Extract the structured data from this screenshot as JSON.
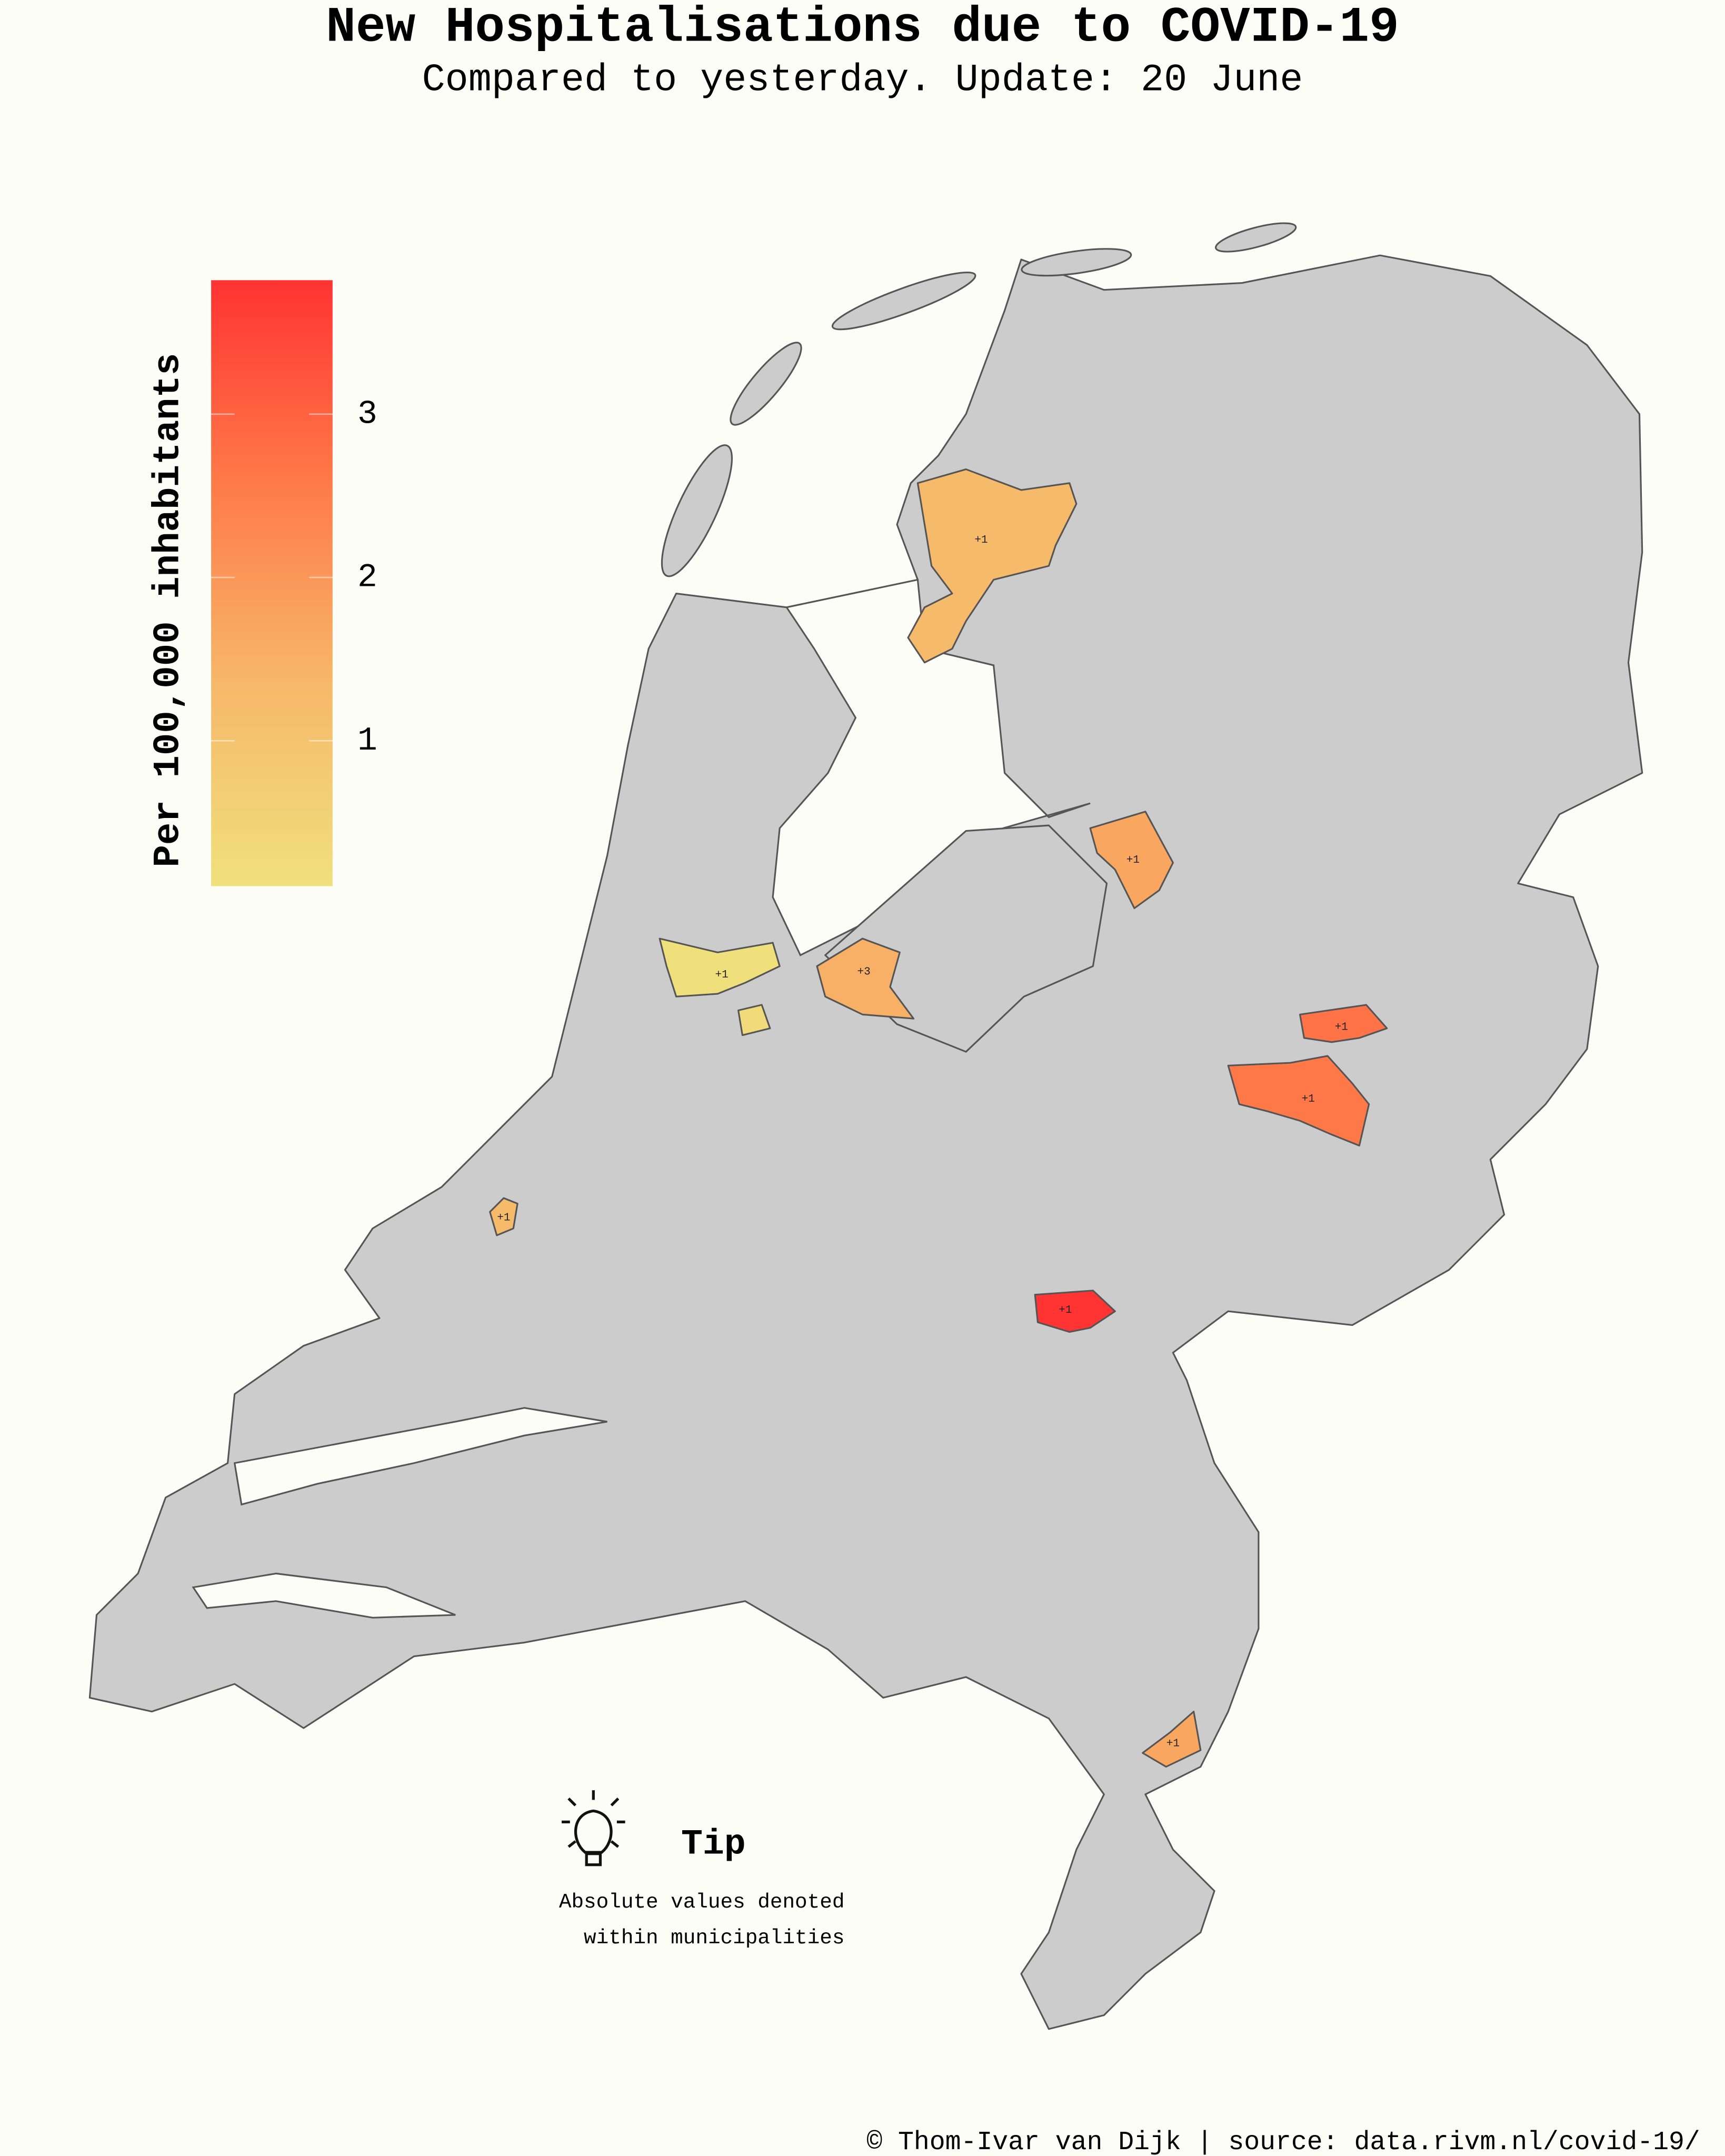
{
  "title": "New Hospitalisations due to COVID-19",
  "subtitle": "Compared to yesterday. Update: 20 June",
  "chart_data": {
    "type": "choropleth",
    "colorbar_label": "Per 100,000 inhabitants",
    "crange": [
      0.11,
      3.82
    ],
    "cticks": [
      1,
      2,
      3
    ],
    "colorscale": [
      "#f0e07c",
      "#f6b86a",
      "#ff7a48",
      "#ff3333"
    ],
    "regions": [
      {
        "label": "+1",
        "value": 1.3
      },
      {
        "label": "+1",
        "value": 1.7
      },
      {
        "label": "+1",
        "value": 0.11
      },
      {
        "label": null,
        "value": 0.3
      },
      {
        "label": "+3",
        "value": 1.5
      },
      {
        "label": "+1",
        "value": 2.7
      },
      {
        "label": "+1",
        "value": 2.6
      },
      {
        "label": "+1",
        "value": 1.3
      },
      {
        "label": "+1",
        "value": 3.8
      },
      {
        "label": "+1",
        "value": 1.7
      }
    ]
  },
  "tip": {
    "heading": "Tip",
    "lines": [
      "Absolute values denoted",
      "within municipalities"
    ]
  },
  "credit": "© Thom-Ivar van Dijk | source: data.rivm.nl/covid-19/"
}
